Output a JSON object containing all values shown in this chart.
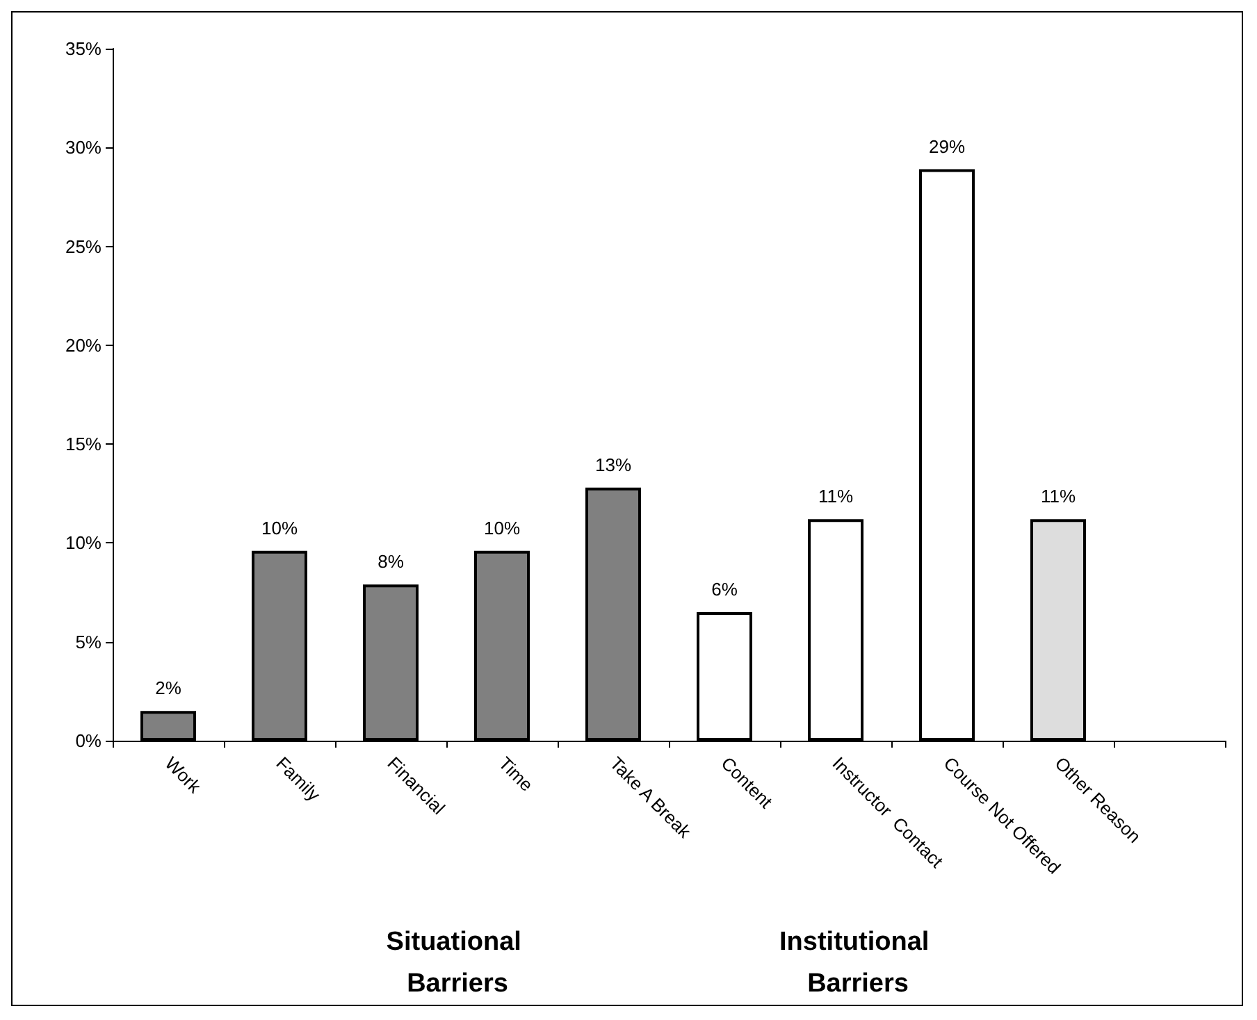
{
  "chart_data": {
    "type": "bar",
    "categories": [
      "Work",
      "Family",
      "Financial",
      "Time",
      "Take A Break",
      "Content",
      "Instructor  Contact",
      "Course Not Offered",
      "Other Reason",
      null
    ],
    "values": [
      1.5,
      9.6,
      7.9,
      9.6,
      12.8,
      6.5,
      11.2,
      28.9,
      11.2,
      null
    ],
    "colors": [
      "#808080",
      "#808080",
      "#808080",
      "#808080",
      "#808080",
      "#ffffff",
      "#ffffff",
      "#ffffff",
      "#dddddd",
      "#ffffff"
    ],
    "value_labels": [
      "2%",
      "10%",
      "8%",
      "10%",
      "13%",
      "6%",
      "11%",
      "29%",
      "11%",
      null
    ],
    "ylim": [
      0,
      35
    ],
    "yticks": [
      {
        "value": 0,
        "label": "0%"
      },
      {
        "value": 5,
        "label": "5%"
      },
      {
        "value": 10,
        "label": "10%"
      },
      {
        "value": 15,
        "label": "15%"
      },
      {
        "value": 20,
        "label": "20%"
      },
      {
        "value": 25,
        "label": "25%"
      },
      {
        "value": 30,
        "label": "30%"
      },
      {
        "value": 35,
        "label": "35%"
      }
    ],
    "annotations": [
      "Situational Barriers",
      "Institutional Barriers"
    ],
    "grid": false
  }
}
